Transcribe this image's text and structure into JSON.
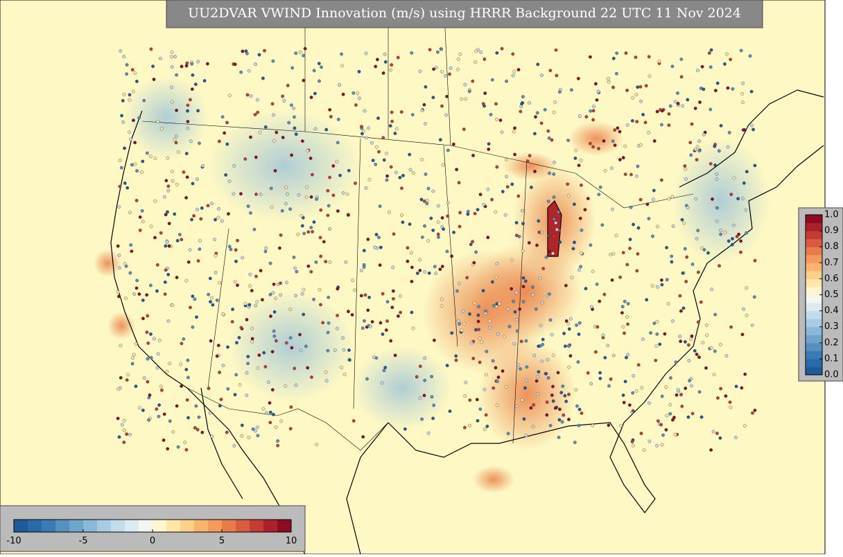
{
  "header": {
    "title": "UU2DVAR VWIND Innovation (m/s) using HRRR Background 22 UTC 11 Nov 2024"
  },
  "colorbars": [
    {
      "orientation": "horizontal",
      "lim": [
        -10,
        10
      ],
      "ticks": [
        -10,
        -5,
        0,
        5,
        10
      ],
      "colors": [
        "#1f5a99",
        "#2a6aa8",
        "#3b7ab4",
        "#5690bf",
        "#6fa4cb",
        "#8bb8d8",
        "#a6cbe3",
        "#c2dcec",
        "#dceaf2",
        "#f3f6ee",
        "#fdf6d0",
        "#fde6a8",
        "#fcd08a",
        "#f9b56e",
        "#f49a5a",
        "#e97b4a",
        "#d95c3e",
        "#c53a32",
        "#ad2029",
        "#8e0c22"
      ]
    },
    {
      "orientation": "vertical",
      "lim": [
        0,
        1
      ],
      "ticks": [
        {
          "value": 0,
          "label": "0.0"
        },
        0.1,
        0.2,
        0.3,
        0.4,
        0.5,
        0.6,
        0.7,
        0.8,
        0.9,
        {
          "value": 1,
          "label": "1.0"
        }
      ],
      "colors": [
        "#1f5a99",
        "#2a6aa8",
        "#3b7ab4",
        "#5690bf",
        "#6fa4cb",
        "#8bb8d8",
        "#a6cbe3",
        "#c2dcec",
        "#dceaf2",
        "#f3f6ee",
        "#fdf6d0",
        "#fde6a8",
        "#fcd08a",
        "#f9b56e",
        "#f49a5a",
        "#e97b4a",
        "#d95c3e",
        "#c53a32",
        "#ad2029",
        "#8e0c22"
      ]
    }
  ]
}
